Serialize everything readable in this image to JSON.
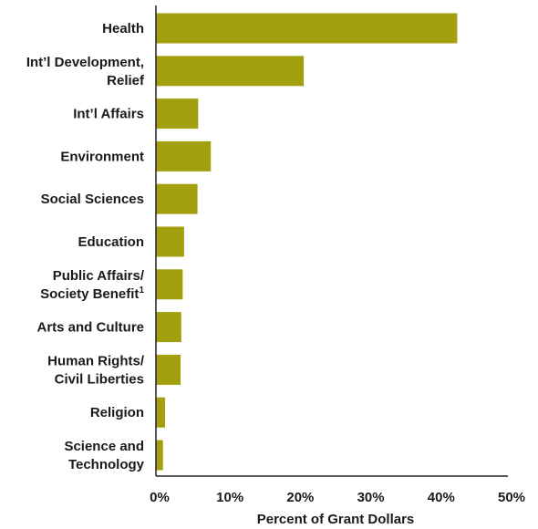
{
  "chart_data": {
    "type": "bar",
    "orientation": "horizontal",
    "categories": [
      {
        "lines": [
          "Health"
        ],
        "sup": ""
      },
      {
        "lines": [
          "Int’l Development,",
          "Relief"
        ],
        "sup": ""
      },
      {
        "lines": [
          "Int’l Affairs"
        ],
        "sup": ""
      },
      {
        "lines": [
          "Environment"
        ],
        "sup": ""
      },
      {
        "lines": [
          "Social Sciences"
        ],
        "sup": ""
      },
      {
        "lines": [
          "Education"
        ],
        "sup": ""
      },
      {
        "lines": [
          "Public Affairs/",
          "Society Benefit"
        ],
        "sup": "1"
      },
      {
        "lines": [
          "Arts and Culture"
        ],
        "sup": ""
      },
      {
        "lines": [
          "Human Rights/",
          "Civil Liberties"
        ],
        "sup": ""
      },
      {
        "lines": [
          "Religion"
        ],
        "sup": ""
      },
      {
        "lines": [
          "Science and",
          "Technology"
        ],
        "sup": ""
      }
    ],
    "values": [
      42.8,
      21.0,
      6.0,
      7.8,
      5.9,
      4.0,
      3.8,
      3.6,
      3.5,
      1.3,
      1.0
    ],
    "xlim": [
      0,
      50
    ],
    "xticks": [
      0,
      10,
      20,
      30,
      40,
      50
    ],
    "tick_format": "{v}%",
    "xlabel": "Percent of Grant Dollars",
    "grid": false,
    "bar_color": "#a3a010",
    "axis_color": "#222222"
  }
}
